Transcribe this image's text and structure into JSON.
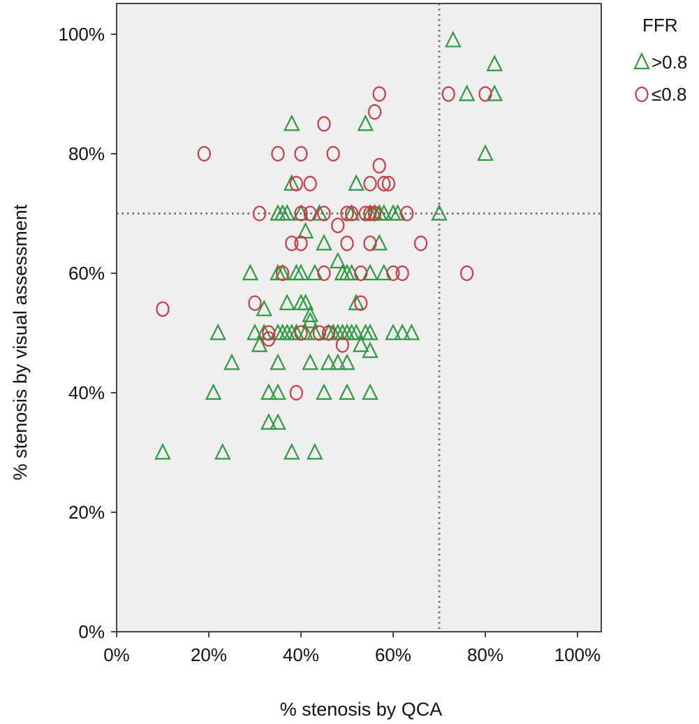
{
  "chart_data": {
    "type": "scatter",
    "xlabel": "% stenosis by QCA",
    "ylabel": "% stenosis by visual assessment",
    "xlim": [
      0,
      100
    ],
    "ylim": [
      0,
      100
    ],
    "x_ticks": [
      "0%",
      "20%",
      "40%",
      "60%",
      "80%",
      "100%"
    ],
    "y_ticks": [
      "0%",
      "20%",
      "40%",
      "60%",
      "80%",
      "100%"
    ],
    "grid": false,
    "reference_lines": {
      "x": 70,
      "y": 70,
      "style": "dotted"
    },
    "legend": {
      "title": "FFR",
      "placement": "right-top"
    },
    "colors": {
      "gt": "#2e9a3e",
      "le": "#cc3a45",
      "plot_bg": "#efefef",
      "frame": "#444444",
      "refline": "#777777"
    },
    "series": [
      {
        "name": ">0.8",
        "marker": "triangle",
        "points": [
          [
            73,
            99
          ],
          [
            82,
            95
          ],
          [
            76,
            90
          ],
          [
            82,
            90
          ],
          [
            80,
            80
          ],
          [
            38,
            85
          ],
          [
            54,
            85
          ],
          [
            38,
            75
          ],
          [
            52,
            75
          ],
          [
            35,
            70
          ],
          [
            36,
            70
          ],
          [
            37,
            70
          ],
          [
            40,
            70
          ],
          [
            44,
            70
          ],
          [
            51,
            70
          ],
          [
            55,
            70
          ],
          [
            56,
            70
          ],
          [
            57,
            70
          ],
          [
            58,
            70
          ],
          [
            60,
            70
          ],
          [
            61,
            70
          ],
          [
            70,
            70
          ],
          [
            41,
            67
          ],
          [
            45,
            65
          ],
          [
            57,
            65
          ],
          [
            48,
            62
          ],
          [
            29,
            60
          ],
          [
            35,
            60
          ],
          [
            36,
            60
          ],
          [
            39,
            60
          ],
          [
            40,
            60
          ],
          [
            43,
            60
          ],
          [
            49,
            60
          ],
          [
            50,
            60
          ],
          [
            51,
            60
          ],
          [
            55,
            60
          ],
          [
            58,
            60
          ],
          [
            37,
            55
          ],
          [
            40,
            55
          ],
          [
            41,
            55
          ],
          [
            42,
            53
          ],
          [
            52,
            55
          ],
          [
            32,
            54
          ],
          [
            42,
            52
          ],
          [
            22,
            50
          ],
          [
            30,
            50
          ],
          [
            32,
            50
          ],
          [
            35,
            50
          ],
          [
            36,
            50
          ],
          [
            37,
            50
          ],
          [
            38,
            50
          ],
          [
            39,
            50
          ],
          [
            41,
            50
          ],
          [
            43,
            50
          ],
          [
            46,
            50
          ],
          [
            47,
            50
          ],
          [
            48,
            50
          ],
          [
            49,
            50
          ],
          [
            50,
            50
          ],
          [
            51,
            50
          ],
          [
            52,
            50
          ],
          [
            54,
            50
          ],
          [
            55,
            50
          ],
          [
            60,
            50
          ],
          [
            62,
            50
          ],
          [
            64,
            50
          ],
          [
            31,
            48
          ],
          [
            53,
            48
          ],
          [
            55,
            47
          ],
          [
            25,
            45
          ],
          [
            35,
            45
          ],
          [
            42,
            45
          ],
          [
            46,
            45
          ],
          [
            48,
            45
          ],
          [
            50,
            45
          ],
          [
            21,
            40
          ],
          [
            33,
            40
          ],
          [
            35,
            40
          ],
          [
            45,
            40
          ],
          [
            50,
            40
          ],
          [
            55,
            40
          ],
          [
            33,
            35
          ],
          [
            35,
            35
          ],
          [
            10,
            30
          ],
          [
            23,
            30
          ],
          [
            38,
            30
          ],
          [
            43,
            30
          ]
        ]
      },
      {
        "name": "≤0.8",
        "marker": "circle",
        "points": [
          [
            57,
            90
          ],
          [
            72,
            90
          ],
          [
            80,
            90
          ],
          [
            56,
            87
          ],
          [
            45,
            85
          ],
          [
            19,
            80
          ],
          [
            35,
            80
          ],
          [
            40,
            80
          ],
          [
            47,
            80
          ],
          [
            57,
            78
          ],
          [
            39,
            75
          ],
          [
            42,
            75
          ],
          [
            55,
            75
          ],
          [
            58,
            75
          ],
          [
            59,
            75
          ],
          [
            31,
            70
          ],
          [
            40,
            70
          ],
          [
            42,
            70
          ],
          [
            45,
            70
          ],
          [
            50,
            70
          ],
          [
            51,
            70
          ],
          [
            54,
            70
          ],
          [
            55,
            70
          ],
          [
            56,
            70
          ],
          [
            63,
            70
          ],
          [
            48,
            68
          ],
          [
            38,
            65
          ],
          [
            40,
            65
          ],
          [
            50,
            65
          ],
          [
            55,
            65
          ],
          [
            66,
            65
          ],
          [
            36,
            60
          ],
          [
            45,
            60
          ],
          [
            53,
            60
          ],
          [
            60,
            60
          ],
          [
            62,
            60
          ],
          [
            76,
            60
          ],
          [
            10,
            54
          ],
          [
            30,
            55
          ],
          [
            53,
            55
          ],
          [
            33,
            50
          ],
          [
            40,
            50
          ],
          [
            44,
            50
          ],
          [
            46,
            50
          ],
          [
            33,
            49
          ],
          [
            49,
            48
          ],
          [
            39,
            40
          ]
        ]
      }
    ]
  }
}
